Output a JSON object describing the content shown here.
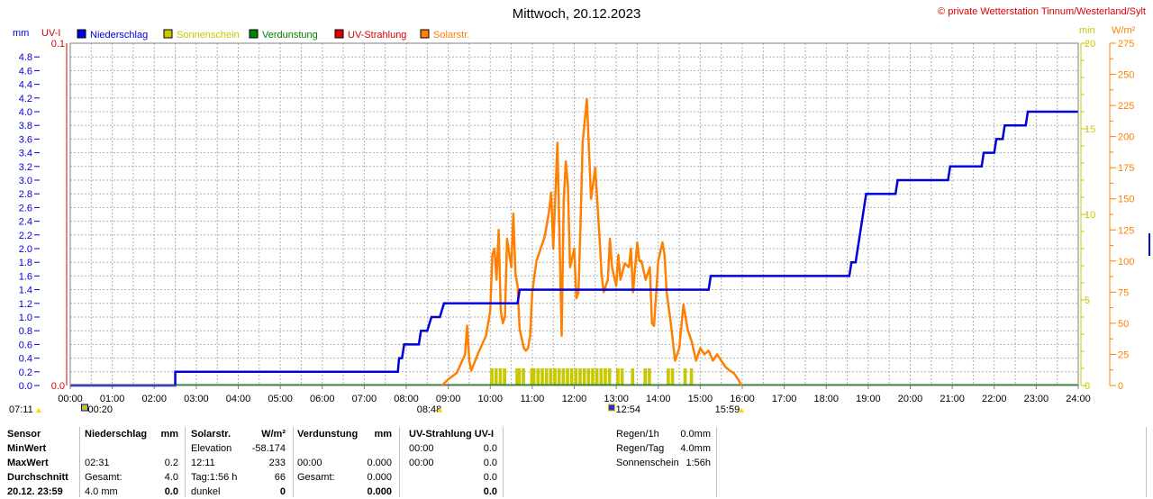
{
  "title": "Mittwoch, 20.12.2023",
  "copyright": "© private Wetterstation Tinnum/Westerland/Sylt",
  "chart_data": {
    "type": "line",
    "title": "Mittwoch, 20.12.2023",
    "legend": [
      {
        "label": "Niederschlag",
        "color": "#0000dd"
      },
      {
        "label": "Sonnenschein",
        "color": "#c8c800"
      },
      {
        "label": "Verdunstung",
        "color": "#008000"
      },
      {
        "label": "UV-Strahlung",
        "color": "#dd0000"
      },
      {
        "label": "Solarstr.",
        "color": "#ff8000"
      }
    ],
    "axes": {
      "mm": {
        "label": "mm",
        "range": [
          0,
          5
        ],
        "ticks": [
          "0.0",
          "0.2",
          "0.4",
          "0.6",
          "0.8",
          "1.0",
          "1.2",
          "1.4",
          "1.6",
          "1.8",
          "2.0",
          "2.2",
          "2.4",
          "2.6",
          "2.8",
          "3.0",
          "3.2",
          "3.4",
          "3.6",
          "3.8",
          "4.0",
          "4.2",
          "4.4",
          "4.6",
          "4.8"
        ]
      },
      "uv": {
        "label": "UV-I",
        "range": [
          0,
          0.1
        ],
        "ticks": [
          "0.0",
          "0.1"
        ]
      },
      "min": {
        "label": "min",
        "range": [
          0,
          20
        ],
        "ticks": [
          "0",
          "5",
          "10",
          "15",
          "20"
        ]
      },
      "wm2": {
        "label": "W/m²",
        "range": [
          0,
          275
        ],
        "ticks": [
          "0",
          "25",
          "50",
          "75",
          "100",
          "125",
          "150",
          "175",
          "200",
          "225",
          "250",
          "275"
        ]
      },
      "x": {
        "range": [
          0,
          24
        ],
        "ticks": [
          "00:00",
          "01:00",
          "02:00",
          "03:00",
          "04:00",
          "05:00",
          "06:00",
          "07:00",
          "08:00",
          "09:00",
          "10:00",
          "11:00",
          "12:00",
          "13:00",
          "14:00",
          "15:00",
          "16:00",
          "17:00",
          "18:00",
          "19:00",
          "20:00",
          "21:00",
          "22:00",
          "23:00",
          "24:00"
        ]
      }
    },
    "grid": true,
    "markers": [
      {
        "label": "07:11",
        "time": 7.183
      },
      {
        "label": "00:20",
        "time": 0.333
      },
      {
        "label": "08:48",
        "time": 8.8
      },
      {
        "label": "12:54",
        "time": 12.9
      },
      {
        "label": "15:59",
        "time": 15.983
      }
    ],
    "series": [
      {
        "name": "Niederschlag",
        "axis": "mm",
        "color": "#0000dd",
        "x": [
          0,
          2.5,
          2.5,
          7.8,
          7.83,
          7.9,
          7.95,
          8.3,
          8.35,
          8.5,
          8.6,
          8.8,
          8.9,
          10.65,
          10.7,
          10.75,
          15.2,
          15.25,
          15.3,
          18.55,
          18.6,
          18.7,
          18.75,
          18.8,
          18.85,
          18.9,
          18.95,
          19.65,
          19.7,
          20.9,
          20.95,
          21.7,
          21.75,
          22.0,
          22.05,
          22.2,
          22.25,
          22.75,
          22.8,
          24
        ],
        "y": [
          0,
          0,
          0.2,
          0.2,
          0.4,
          0.4,
          0.6,
          0.6,
          0.8,
          0.8,
          1.0,
          1.0,
          1.2,
          1.2,
          1.4,
          1.4,
          1.4,
          1.6,
          1.6,
          1.6,
          1.8,
          1.8,
          2.0,
          2.2,
          2.4,
          2.6,
          2.8,
          2.8,
          3.0,
          3.0,
          3.2,
          3.2,
          3.4,
          3.4,
          3.6,
          3.6,
          3.8,
          3.8,
          4.0,
          4.0
        ]
      },
      {
        "name": "Solarstr.",
        "axis": "wm2",
        "color": "#ff8000",
        "x": [
          8.85,
          9.0,
          9.2,
          9.4,
          9.45,
          9.5,
          9.55,
          9.7,
          9.9,
          10.0,
          10.05,
          10.1,
          10.15,
          10.2,
          10.25,
          10.3,
          10.35,
          10.4,
          10.5,
          10.55,
          10.6,
          10.65,
          10.7,
          10.8,
          10.85,
          10.9,
          10.95,
          11.0,
          11.1,
          11.2,
          11.3,
          11.4,
          11.45,
          11.5,
          11.6,
          11.7,
          11.75,
          11.8,
          11.85,
          11.9,
          12.0,
          12.05,
          12.1,
          12.15,
          12.2,
          12.3,
          12.4,
          12.5,
          12.6,
          12.65,
          12.7,
          12.8,
          12.85,
          12.9,
          13.0,
          13.05,
          13.1,
          13.2,
          13.3,
          13.35,
          13.4,
          13.5,
          13.55,
          13.6,
          13.7,
          13.8,
          13.85,
          13.9,
          14.0,
          14.1,
          14.15,
          14.2,
          14.3,
          14.4,
          14.5,
          14.6,
          14.7,
          14.8,
          14.9,
          15.0,
          15.1,
          15.2,
          15.3,
          15.4,
          15.5,
          15.6,
          15.7,
          15.8,
          15.9,
          15.98
        ],
        "y": [
          0,
          5,
          10,
          25,
          48,
          20,
          12,
          25,
          40,
          60,
          105,
          110,
          85,
          125,
          60,
          50,
          55,
          118,
          95,
          138,
          90,
          80,
          45,
          30,
          28,
          30,
          40,
          75,
          100,
          110,
          120,
          140,
          155,
          110,
          195,
          40,
          150,
          180,
          160,
          95,
          110,
          70,
          75,
          130,
          195,
          230,
          150,
          175,
          120,
          90,
          75,
          85,
          118,
          95,
          80,
          105,
          85,
          98,
          95,
          110,
          75,
          115,
          100,
          100,
          85,
          95,
          50,
          48,
          100,
          115,
          105,
          75,
          50,
          20,
          30,
          65,
          45,
          35,
          20,
          30,
          25,
          28,
          20,
          25,
          20,
          15,
          12,
          10,
          5,
          0
        ]
      },
      {
        "name": "Sonnenschein",
        "axis": "min",
        "color": "#c8c800",
        "x": [
          10.0,
          10.1,
          10.2,
          10.3,
          10.6,
          10.65,
          10.75,
          10.95,
          11.0,
          11.1,
          11.2,
          11.3,
          11.4,
          11.5,
          11.6,
          11.7,
          11.8,
          11.9,
          12.0,
          12.1,
          12.2,
          12.3,
          12.4,
          12.5,
          12.6,
          12.7,
          12.8,
          13.0,
          13.1,
          13.35,
          13.65,
          13.75,
          14.2,
          14.3,
          14.6,
          14.75
        ],
        "y": [
          1,
          1,
          1,
          1,
          1,
          1,
          1,
          1,
          1,
          1,
          1,
          1,
          1,
          1,
          1,
          1,
          1,
          1,
          1,
          1,
          1,
          1,
          1,
          1,
          1,
          1,
          1,
          1,
          1,
          1,
          1,
          1,
          1,
          1,
          1,
          1
        ]
      },
      {
        "name": "Verdunstung",
        "axis": "mm",
        "color": "#008000",
        "x": [
          0,
          24
        ],
        "y": [
          0,
          0
        ]
      }
    ]
  },
  "table": {
    "rows": [
      {
        "c1": "Sensor",
        "c2": "Niederschlag",
        "c3": "mm",
        "c4": "Solarstr.",
        "c5": "W/m²",
        "c6": "Verdunstung",
        "c7": "mm",
        "c8": "UV-Strahlung UV-I",
        "c9": "",
        "c10": "Regen/1h",
        "c11": "0.0mm"
      },
      {
        "c1": "MinWert",
        "c2": "",
        "c3": "",
        "c4": "Elevation",
        "c5": "-58.174",
        "c6": "",
        "c7": "",
        "c8": "00:00",
        "c9": "0.0",
        "c10": "Regen/Tag",
        "c11": "4.0mm"
      },
      {
        "c1": "MaxWert",
        "c2": "02:31",
        "c3": "0.2",
        "c4": "12:11",
        "c5": "233",
        "c6": "00:00",
        "c7": "0.000",
        "c8": "00:00",
        "c9": "0.0",
        "c10": "Sonnenschein",
        "c11": "1:56h"
      },
      {
        "c1": "Durchschnitt",
        "c2": "Gesamt:",
        "c3": "4.0",
        "c4": "Tag:1:56 h",
        "c5": "66",
        "c6": "Gesamt:",
        "c7": "0.000",
        "c8": "",
        "c9": "0.0",
        "c10": "",
        "c11": ""
      },
      {
        "c1": "20.12. 23:59",
        "c2": "4.0 mm",
        "c3": "0.0",
        "c4": "dunkel",
        "c5": "0",
        "c6": "",
        "c7": "0.000",
        "c8": "",
        "c9": "0.0",
        "c10": "",
        "c11": ""
      }
    ]
  }
}
